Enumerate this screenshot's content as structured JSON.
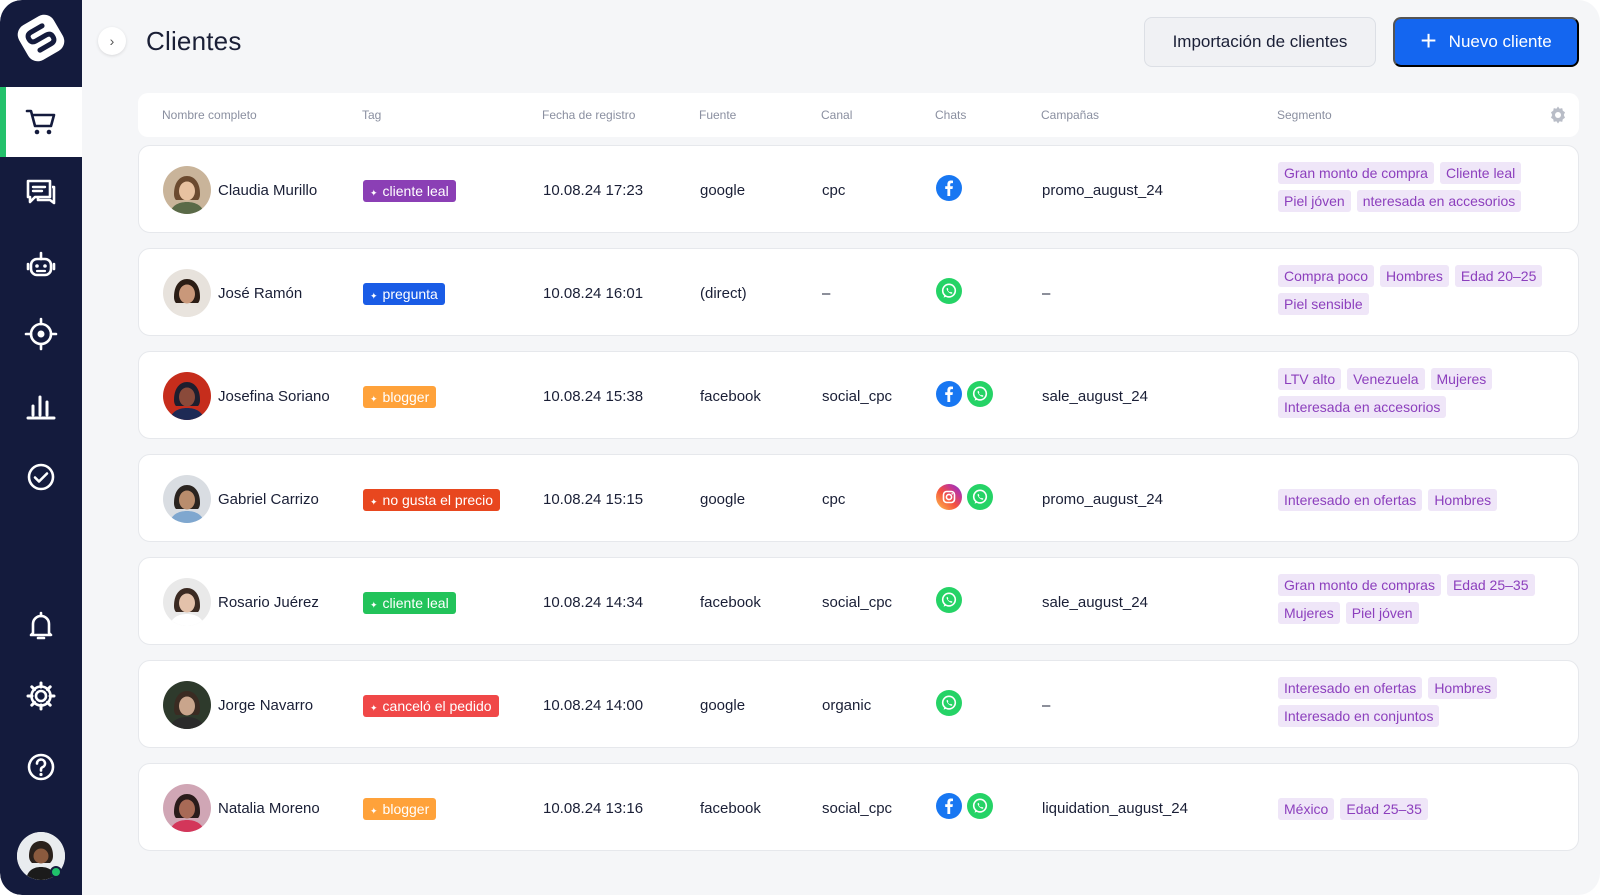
{
  "page": {
    "title": "Clientes"
  },
  "actions": {
    "import_label": "Importación de clientes",
    "new_label": "Nuevo cliente"
  },
  "columns": [
    "Nombre completo",
    "Tag",
    "Fecha de registro",
    "Fuente",
    "Canal",
    "Chats",
    "Campañas",
    "Segmento"
  ],
  "colors": {
    "sidebar": "#141b3d",
    "accent": "#1466f0",
    "active_indicator": "#23c16b",
    "segment_bg": "#efe6f8",
    "segment_text": "#8c3fbd"
  },
  "sidebar": {
    "items": [
      {
        "name": "cart-icon",
        "active": true
      },
      {
        "name": "chat-icon",
        "active": false
      },
      {
        "name": "bot-icon",
        "active": false
      },
      {
        "name": "target-icon",
        "active": false
      },
      {
        "name": "analytics-icon",
        "active": false
      },
      {
        "name": "check-circle-icon",
        "active": false
      },
      {
        "name": "bell-icon",
        "active": false
      },
      {
        "name": "settings-icon",
        "active": false
      },
      {
        "name": "help-icon",
        "active": false
      }
    ]
  },
  "clients": [
    {
      "name": "Claudia Murillo",
      "tag": "cliente leal",
      "tag_color": "#8b3fb5",
      "date": "10.08.24 17:23",
      "source": "google",
      "canal": "cpc",
      "chats": [
        "facebook"
      ],
      "campaign": "promo_august_24",
      "segments": [
        "Gran monto de compra",
        "Cliente leal",
        "Piel jóven",
        "nteresada en accesorios"
      ]
    },
    {
      "name": "José Ramón",
      "tag": "pregunta",
      "tag_color": "#1a5ce6",
      "date": "10.08.24 16:01",
      "source": "(direct)",
      "canal": "–",
      "chats": [
        "whatsapp"
      ],
      "campaign": "–",
      "segments": [
        "Compra poco",
        "Hombres",
        "Edad 20–25",
        "Piel sensible"
      ]
    },
    {
      "name": "Josefina Soriano",
      "tag": "blogger",
      "tag_color": "#ffa23a",
      "date": "10.08.24 15:38",
      "source": "facebook",
      "canal": "social_cpc",
      "chats": [
        "facebook",
        "whatsapp"
      ],
      "campaign": "sale_august_24",
      "segments": [
        "LTV alto",
        "Venezuela",
        "Mujeres",
        "Interesada en accesorios"
      ]
    },
    {
      "name": "Gabriel Carrizo",
      "tag": "no gusta el precio",
      "tag_color": "#e8471f",
      "date": "10.08.24 15:15",
      "source": "google",
      "canal": "cpc",
      "chats": [
        "instagram",
        "whatsapp"
      ],
      "campaign": "promo_august_24",
      "segments": [
        "Interesado en ofertas",
        "Hombres"
      ]
    },
    {
      "name": "Rosario Juérez",
      "tag": "cliente leal",
      "tag_color": "#22c35a",
      "date": "10.08.24 14:34",
      "source": "facebook",
      "canal": "social_cpc",
      "chats": [
        "whatsapp"
      ],
      "campaign": "sale_august_24",
      "segments": [
        "Gran monto de compras",
        "Edad 25–35",
        "Mujeres",
        "Piel jóven"
      ]
    },
    {
      "name": "Jorge Navarro",
      "tag": "canceló el pedido",
      "tag_color": "#f04848",
      "date": "10.08.24 14:00",
      "source": "google",
      "canal": "organic",
      "chats": [
        "whatsapp"
      ],
      "campaign": "–",
      "segments": [
        "Interesado en ofertas",
        "Hombres",
        "Interesado en conjuntos"
      ]
    },
    {
      "name": "Natalia Moreno",
      "tag": "blogger",
      "tag_color": "#ffa23a",
      "date": "10.08.24 13:16",
      "source": "facebook",
      "canal": "social_cpc",
      "chats": [
        "facebook",
        "whatsapp"
      ],
      "campaign": "liquidation_august_24",
      "segments": [
        "México",
        "Edad 25–35"
      ]
    }
  ]
}
